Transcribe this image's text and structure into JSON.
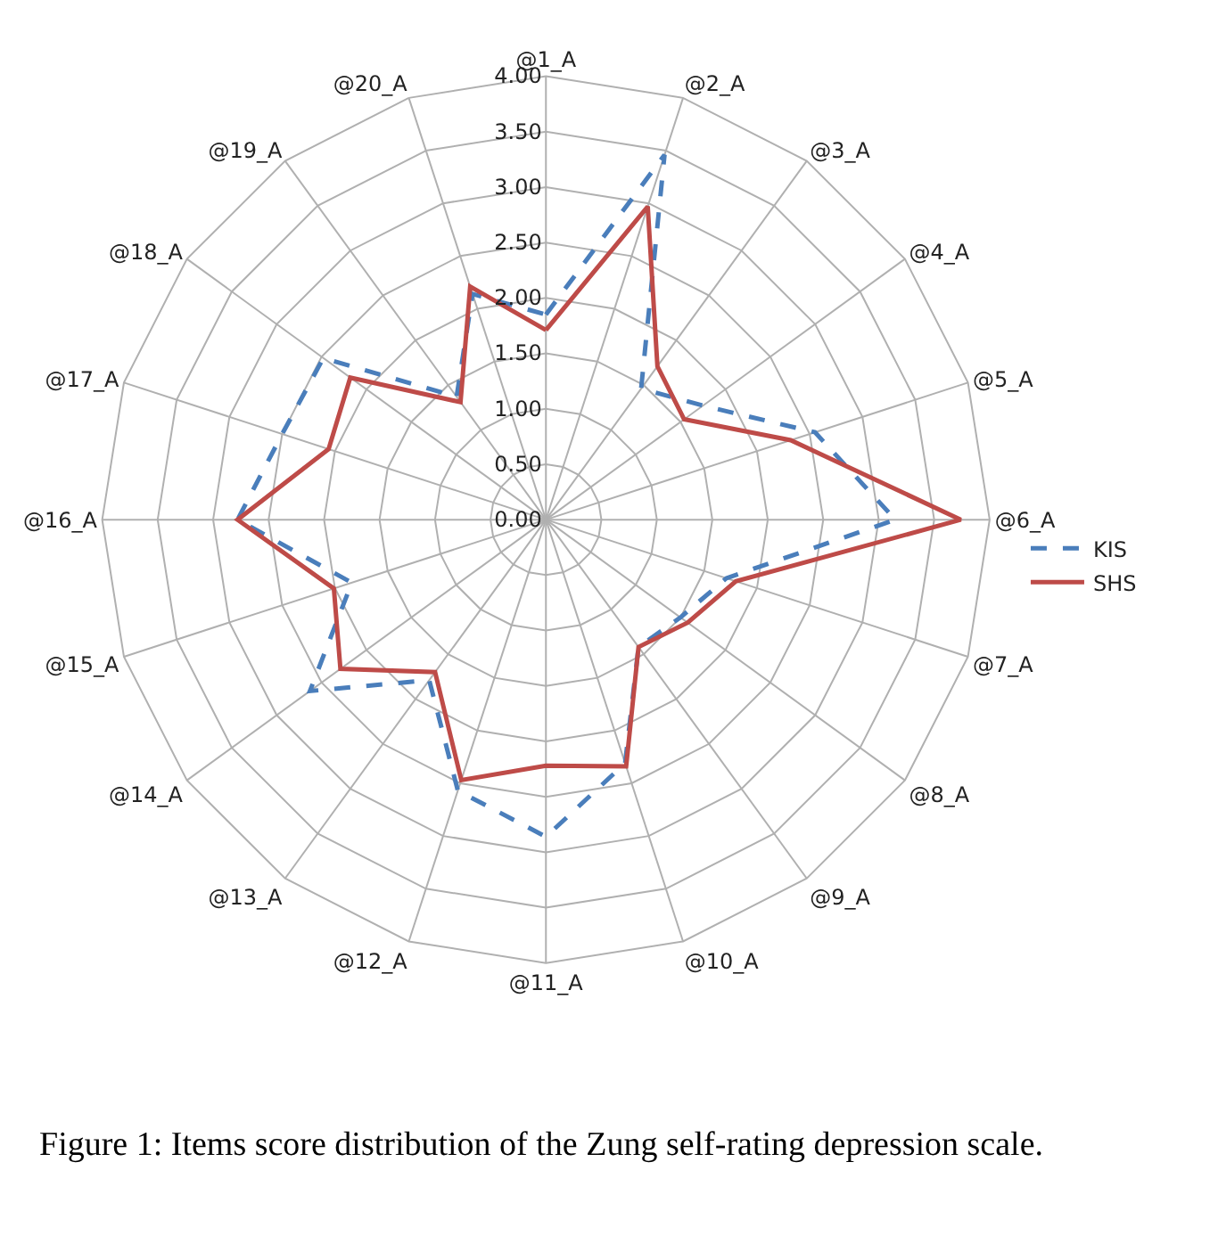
{
  "chart_data": {
    "type": "radar",
    "categories": [
      "@1_A",
      "@2_A",
      "@3_A",
      "@4_A",
      "@5_A",
      "@6_A",
      "@7_A",
      "@8_A",
      "@9_A",
      "@10_A",
      "@11_A",
      "@12_A",
      "@13_A",
      "@14_A",
      "@15_A",
      "@16_A",
      "@17_A",
      "@18_A",
      "@19_A",
      "@20_A"
    ],
    "series": [
      {
        "name": "KIS",
        "color": "#4a7ebb",
        "line_style": "dashed",
        "values": [
          1.85,
          3.46,
          1.46,
          1.75,
          2.55,
          3.15,
          1.71,
          1.5,
          1.42,
          2.31,
          2.86,
          2.57,
          1.79,
          2.63,
          1.84,
          2.78,
          2.5,
          2.48,
          1.37,
          2.14
        ]
      },
      {
        "name": "SHS",
        "color": "#be4b48",
        "line_style": "solid",
        "values": [
          1.71,
          2.97,
          1.71,
          1.54,
          2.32,
          3.74,
          1.8,
          1.58,
          1.42,
          2.34,
          2.22,
          2.47,
          1.7,
          2.29,
          2.01,
          2.78,
          2.06,
          2.18,
          1.31,
          2.21
        ]
      }
    ],
    "ylim": [
      0,
      4
    ],
    "yticks": [
      {
        "value": 0,
        "label": "0.00"
      },
      {
        "value": 0.5,
        "label": "0.50"
      },
      {
        "value": 1,
        "label": "1.00"
      },
      {
        "value": 1.5,
        "label": "1.50"
      },
      {
        "value": 2,
        "label": "2.00"
      },
      {
        "value": 2.5,
        "label": "2.50"
      },
      {
        "value": 3,
        "label": "3.00"
      },
      {
        "value": 3.5,
        "label": "3.50"
      },
      {
        "value": 4,
        "label": "4.00"
      }
    ],
    "grid": true,
    "legend": "right",
    "marker": "none",
    "annotations": [
      "Figure 1: Items score distribution of the Zung self-rating depression scale."
    ]
  }
}
